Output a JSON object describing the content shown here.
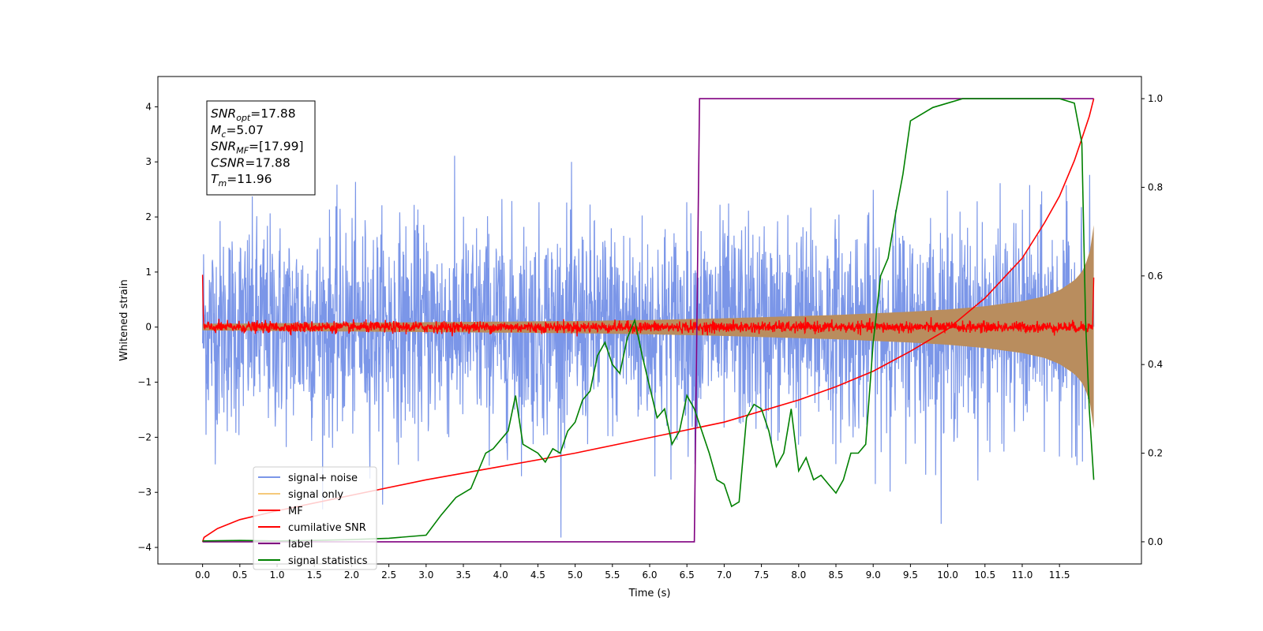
{
  "chart_data": {
    "type": "line",
    "title": "",
    "xlabel": "Time (s)",
    "ylabel": "Whitened strain",
    "y2label": "",
    "xlim": [
      -0.6,
      12.6
    ],
    "ylim": [
      -4.3,
      4.55
    ],
    "y2lim": [
      -0.05,
      1.05
    ],
    "x_ticks": [
      0.0,
      0.5,
      1.0,
      1.5,
      2.0,
      2.5,
      3.0,
      3.5,
      4.0,
      4.5,
      5.0,
      5.5,
      6.0,
      6.5,
      7.0,
      7.5,
      8.0,
      8.5,
      9.0,
      9.5,
      10.0,
      10.5,
      11.0,
      11.5
    ],
    "x_tick_labels": [
      "0.0",
      "0.5",
      "1.0",
      "1.5",
      "2.0",
      "2.5",
      "3.0",
      "3.5",
      "4.0",
      "4.5",
      "5.0",
      "5.5",
      "6.0",
      "6.5",
      "7.0",
      "7.5",
      "8.0",
      "8.5",
      "9.0",
      "9.5",
      "10.0",
      "10.5",
      "11.0",
      "11.5"
    ],
    "y_ticks": [
      -4,
      -3,
      -2,
      -1,
      0,
      1,
      2,
      3,
      4
    ],
    "y_tick_labels": [
      "−4",
      "−3",
      "−2",
      "−1",
      "0",
      "1",
      "2",
      "3",
      "4"
    ],
    "y2_ticks": [
      0.0,
      0.2,
      0.4,
      0.6,
      0.8,
      1.0
    ],
    "y2_tick_labels": [
      "0.0",
      "0.2",
      "0.4",
      "0.6",
      "0.8",
      "1.0"
    ],
    "grid": false,
    "legend_position": "lower-left",
    "legend": [
      {
        "label": "signal+ noise",
        "color": "#7b96e8"
      },
      {
        "label": "signal only",
        "color": "#f5c97a"
      },
      {
        "label": "MF",
        "color": "#ff0000"
      },
      {
        "label": "cumilative SNR",
        "color": "#ff0000"
      },
      {
        "label": "label",
        "color": "#800080"
      },
      {
        "label": "signal statistics",
        "color": "#008000"
      }
    ],
    "annotation": [
      {
        "base": "SNR",
        "sub": "opt",
        "value": "=17.88"
      },
      {
        "base": "M",
        "sub": "c",
        "value": "=5.07"
      },
      {
        "base": "SNR",
        "sub": "MF",
        "value": "=[17.99]"
      },
      {
        "base": "CSNR",
        "sub": "",
        "value": "=17.88"
      },
      {
        "base": "T",
        "sub": "m",
        "value": "=11.96"
      }
    ],
    "series": [
      {
        "name": "signal+ noise",
        "axis": "left",
        "kind": "noise",
        "x_range": [
          0.0,
          11.96
        ],
        "std": 0.95,
        "peak_range": [
          -3.9,
          4.2
        ],
        "color": "#7b96e8"
      },
      {
        "name": "signal only",
        "axis": "left",
        "kind": "chirp-envelope",
        "x": [
          0.0,
          1.0,
          2.0,
          3.0,
          4.0,
          5.0,
          6.0,
          7.0,
          8.0,
          8.5,
          9.0,
          9.5,
          10.0,
          10.5,
          11.0,
          11.3,
          11.5,
          11.7,
          11.8,
          11.9,
          11.96
        ],
        "amplitude": [
          0.06,
          0.07,
          0.08,
          0.09,
          0.1,
          0.11,
          0.13,
          0.16,
          0.2,
          0.22,
          0.25,
          0.28,
          0.32,
          0.38,
          0.47,
          0.56,
          0.67,
          0.85,
          1.0,
          1.3,
          1.85
        ],
        "color": "#b98d5e"
      },
      {
        "name": "MF",
        "axis": "left",
        "kind": "noise",
        "x_range": [
          0.0,
          11.96
        ],
        "std": 0.05,
        "color": "#ff0000"
      },
      {
        "name": "cumilative SNR",
        "axis": "right",
        "x": [
          0.0,
          0.02,
          0.2,
          0.5,
          1.0,
          2.0,
          3.0,
          4.0,
          5.0,
          6.0,
          7.0,
          8.0,
          8.5,
          9.0,
          9.5,
          10.0,
          10.5,
          11.0,
          11.3,
          11.5,
          11.7,
          11.8,
          11.9,
          11.96
        ],
        "y": [
          0.0,
          0.01,
          0.03,
          0.05,
          0.07,
          0.105,
          0.14,
          0.17,
          0.2,
          0.235,
          0.27,
          0.32,
          0.35,
          0.385,
          0.43,
          0.48,
          0.55,
          0.64,
          0.72,
          0.78,
          0.86,
          0.91,
          0.96,
          1.0
        ],
        "color": "#ff0000"
      },
      {
        "name": "label",
        "axis": "right",
        "x": [
          0.0,
          6.6,
          6.67,
          11.96
        ],
        "y": [
          0.0,
          0.0,
          1.0,
          1.0
        ],
        "color": "#800080"
      },
      {
        "name": "signal statistics",
        "axis": "right",
        "x": [
          0.0,
          0.5,
          1.0,
          1.5,
          2.0,
          2.5,
          3.0,
          3.2,
          3.4,
          3.6,
          3.8,
          3.9,
          4.0,
          4.1,
          4.2,
          4.3,
          4.4,
          4.5,
          4.6,
          4.7,
          4.8,
          4.9,
          5.0,
          5.1,
          5.2,
          5.3,
          5.4,
          5.5,
          5.6,
          5.7,
          5.8,
          5.9,
          6.0,
          6.1,
          6.2,
          6.3,
          6.4,
          6.5,
          6.6,
          6.7,
          6.8,
          6.9,
          7.0,
          7.1,
          7.2,
          7.3,
          7.4,
          7.5,
          7.6,
          7.7,
          7.8,
          7.9,
          8.0,
          8.1,
          8.2,
          8.3,
          8.4,
          8.5,
          8.6,
          8.7,
          8.8,
          8.9,
          9.0,
          9.1,
          9.2,
          9.3,
          9.4,
          9.5,
          9.6,
          9.8,
          10.0,
          10.2,
          10.5,
          11.0,
          11.5,
          11.7,
          11.8,
          11.85,
          11.9,
          11.96
        ],
        "y": [
          0.002,
          0.003,
          0.002,
          0.003,
          0.005,
          0.008,
          0.015,
          0.06,
          0.1,
          0.12,
          0.2,
          0.21,
          0.23,
          0.25,
          0.33,
          0.22,
          0.21,
          0.2,
          0.18,
          0.21,
          0.2,
          0.25,
          0.27,
          0.32,
          0.34,
          0.42,
          0.45,
          0.4,
          0.38,
          0.46,
          0.5,
          0.42,
          0.35,
          0.28,
          0.3,
          0.22,
          0.25,
          0.33,
          0.3,
          0.25,
          0.2,
          0.14,
          0.13,
          0.08,
          0.09,
          0.28,
          0.31,
          0.3,
          0.25,
          0.17,
          0.2,
          0.3,
          0.16,
          0.19,
          0.14,
          0.15,
          0.13,
          0.11,
          0.14,
          0.2,
          0.2,
          0.22,
          0.45,
          0.6,
          0.64,
          0.74,
          0.83,
          0.95,
          0.96,
          0.98,
          0.99,
          1.0,
          1.0,
          1.0,
          1.0,
          0.99,
          0.9,
          0.5,
          0.3,
          0.14
        ],
        "color": "#008000"
      }
    ]
  }
}
